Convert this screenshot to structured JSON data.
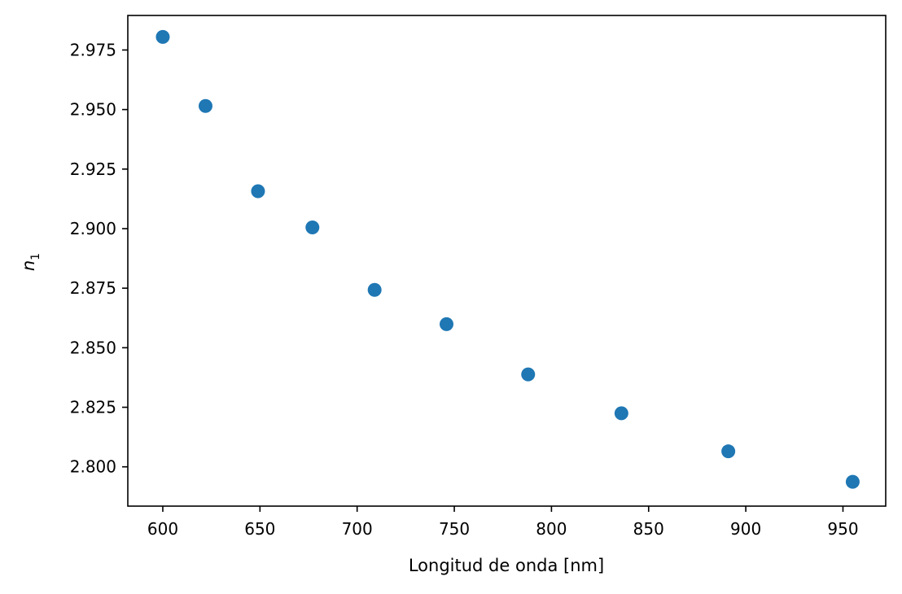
{
  "chart_data": {
    "type": "scatter",
    "title": "",
    "xlabel": "Longitud de onda [nm]",
    "ylabel": {
      "symbol": "n",
      "subscript": "1"
    },
    "xlim": [
      582,
      972
    ],
    "ylim": [
      2.7835,
      2.9895
    ],
    "xticks": [
      600,
      650,
      700,
      750,
      800,
      850,
      900,
      950
    ],
    "yticks": [
      2.8,
      2.825,
      2.85,
      2.875,
      2.9,
      2.925,
      2.95,
      2.975
    ],
    "ytick_decimals": 3,
    "grid": false,
    "legend": "none",
    "marker_color": "#1f77b4",
    "series": [
      {
        "name": "n1",
        "x": [
          600,
          622,
          649,
          677,
          709,
          746,
          788,
          836,
          891,
          955
        ],
        "y": [
          2.9805,
          2.9515,
          2.9157,
          2.9005,
          2.8743,
          2.8599,
          2.8388,
          2.8225,
          2.8065,
          2.7937
        ]
      }
    ]
  }
}
